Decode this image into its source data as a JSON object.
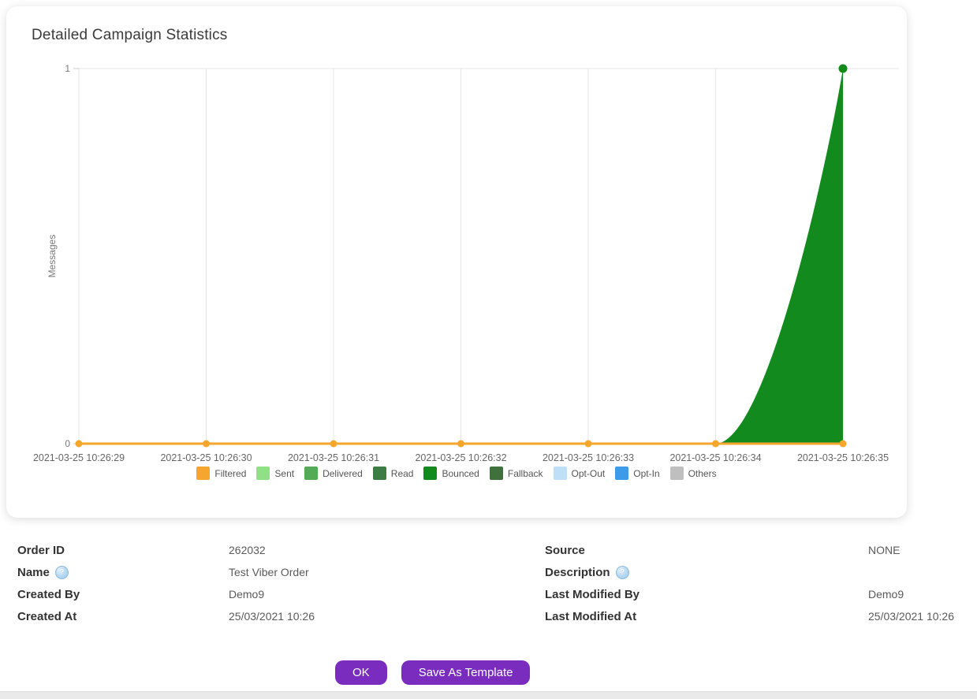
{
  "card": {
    "title": "Detailed Campaign Statistics"
  },
  "chart_data": {
    "type": "area",
    "title": "Detailed Campaign Statistics",
    "x": [
      "2021-03-25 10:26:29",
      "2021-03-25 10:26:30",
      "2021-03-25 10:26:31",
      "2021-03-25 10:26:32",
      "2021-03-25 10:26:33",
      "2021-03-25 10:26:34",
      "2021-03-25 10:26:35"
    ],
    "series": [
      {
        "name": "Filtered",
        "color": "#F4A62D",
        "style": "line",
        "values": [
          0,
          0,
          0,
          0,
          0,
          0,
          0
        ]
      },
      {
        "name": "Sent",
        "color": "#90E085",
        "style": "hidden",
        "values": [
          0,
          0,
          0,
          0,
          0,
          0,
          0
        ]
      },
      {
        "name": "Delivered",
        "color": "#55AB55",
        "style": "hidden",
        "values": [
          0,
          0,
          0,
          0,
          0,
          0,
          0
        ]
      },
      {
        "name": "Read",
        "color": "#3B7D45",
        "style": "hidden",
        "values": [
          0,
          0,
          0,
          0,
          0,
          0,
          0
        ]
      },
      {
        "name": "Bounced",
        "color": "#128A1E",
        "style": "area",
        "values": [
          0,
          0,
          0,
          0,
          0,
          0,
          1
        ]
      },
      {
        "name": "Fallback",
        "color": "#40703C",
        "style": "hidden",
        "values": [
          0,
          0,
          0,
          0,
          0,
          0,
          0
        ]
      },
      {
        "name": "Opt-Out",
        "color": "#BDDFF8",
        "style": "hidden",
        "values": [
          0,
          0,
          0,
          0,
          0,
          0,
          0
        ]
      },
      {
        "name": "Opt-In",
        "color": "#3D9BE9",
        "style": "hidden",
        "values": [
          0,
          0,
          0,
          0,
          0,
          0,
          0
        ]
      },
      {
        "name": "Others",
        "color": "#BFBFBF",
        "style": "hidden",
        "values": [
          0,
          0,
          0,
          0,
          0,
          0,
          0
        ]
      }
    ],
    "ylabel": "Messages",
    "xlabel": "",
    "ylim": [
      0,
      1
    ],
    "yticks": [
      1,
      0
    ],
    "grid": true,
    "legend_position": "bottom"
  },
  "details": {
    "left": [
      {
        "label": "Order ID",
        "value": "262032",
        "help": false
      },
      {
        "label": "Name",
        "value": "Test Viber Order",
        "help": true
      },
      {
        "label": "Created By",
        "value": "Demo9",
        "help": false
      },
      {
        "label": "Created At",
        "value": "25/03/2021 10:26",
        "help": false
      }
    ],
    "right": [
      {
        "label": "Source",
        "value": "NONE",
        "help": false
      },
      {
        "label": "Description",
        "value": "",
        "help": true
      },
      {
        "label": "Last Modified By",
        "value": "Demo9",
        "help": false
      },
      {
        "label": "Last Modified At",
        "value": "25/03/2021 10:26",
        "help": false
      }
    ]
  },
  "buttons": {
    "ok_label": "OK",
    "save_as_template_label": "Save As Template"
  },
  "colors": {
    "accent": "#7A2CBE"
  }
}
